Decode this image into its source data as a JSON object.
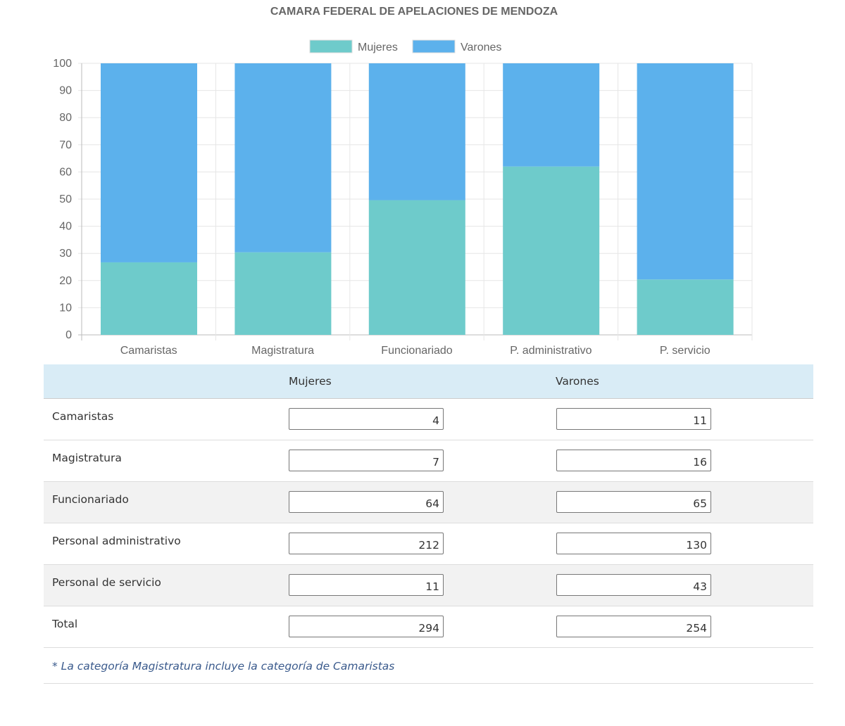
{
  "chart_data": {
    "type": "bar",
    "stacked": true,
    "title": "CAMARA FEDERAL DE APELACIONES DE MENDOZA",
    "categories": [
      "Camaristas",
      "Magistratura",
      "Funcionariado",
      "P. administrativo",
      "P. servicio"
    ],
    "series": [
      {
        "name": "Mujeres",
        "color": "#6ecbcb",
        "values": [
          26.7,
          30.4,
          49.6,
          62.0,
          20.4
        ]
      },
      {
        "name": "Varones",
        "color": "#5cb1ec",
        "values": [
          73.3,
          69.6,
          50.4,
          38.0,
          79.6
        ]
      }
    ],
    "ylim": [
      0,
      100
    ],
    "yticks": [
      0,
      10,
      20,
      30,
      40,
      50,
      60,
      70,
      80,
      90,
      100
    ],
    "grid": true,
    "legend": "top"
  },
  "table": {
    "headers": [
      "",
      "Mujeres",
      "Varones"
    ],
    "rows": [
      {
        "label": "Camaristas",
        "mujeres": "4",
        "varones": "11"
      },
      {
        "label": "Magistratura",
        "mujeres": "7",
        "varones": "16"
      },
      {
        "label": "Funcionariado",
        "mujeres": "64",
        "varones": "65"
      },
      {
        "label": "Personal administrativo",
        "mujeres": "212",
        "varones": "130"
      },
      {
        "label": "Personal de servicio",
        "mujeres": "11",
        "varones": "43"
      },
      {
        "label": "Total",
        "mujeres": "294",
        "varones": "254"
      }
    ],
    "note": "* La categoría Magistratura incluye la categoría de Camaristas"
  }
}
